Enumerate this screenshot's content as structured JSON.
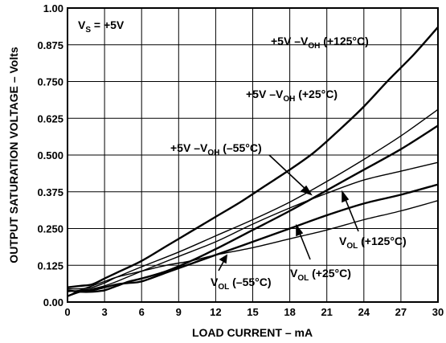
{
  "chart_data": {
    "type": "line",
    "xlabel": "LOAD CURRENT – mA",
    "ylabel": "OUTPUT SATURATION VOLTAGE – Volts",
    "xlim": [
      0,
      30
    ],
    "ylim": [
      0,
      1.0
    ],
    "x_ticks": [
      "0",
      "3",
      "6",
      "9",
      "12",
      "15",
      "18",
      "21",
      "24",
      "27",
      "30"
    ],
    "y_ticks": [
      "0.00",
      "0.125",
      "0.250",
      "0.375",
      "0.500",
      "0.625",
      "0.750",
      "0.875",
      "1.00"
    ],
    "grid": true,
    "annotations": {
      "vs": {
        "main": "V",
        "sub": "S",
        "post": " = +5V"
      },
      "voh125": {
        "pre": "+5V –V",
        "sub": "OH",
        "post": " (+125°C)"
      },
      "voh25": {
        "pre": "+5V –V",
        "sub": "OH",
        "post": " (+25°C)"
      },
      "vohm55": {
        "pre": "+5V –V",
        "sub": "OH",
        "post": " (–55°C)"
      },
      "vol125": {
        "pre": "V",
        "sub": "OL",
        "post": " (+125°C)"
      },
      "vol25": {
        "pre": "V",
        "sub": "OL",
        "post": " (+25°C)"
      },
      "volm55": {
        "pre": "V",
        "sub": "OL",
        "post": " (–55°C)"
      }
    },
    "series": [
      {
        "name": "+5V –VOH (+125°C)",
        "thick": true,
        "x": [
          0,
          1,
          2,
          3,
          4,
          6,
          8,
          10,
          12,
          14,
          16,
          18,
          20,
          22,
          24,
          26,
          28,
          30
        ],
        "y": [
          0.05,
          0.055,
          0.06,
          0.08,
          0.1,
          0.14,
          0.19,
          0.24,
          0.29,
          0.34,
          0.395,
          0.45,
          0.51,
          0.585,
          0.665,
          0.755,
          0.84,
          0.935
        ]
      },
      {
        "name": "+5V –VOH (+25°C)",
        "thick": false,
        "x": [
          0,
          1,
          2,
          3,
          4,
          6,
          9,
          12,
          15,
          18,
          21,
          24,
          27,
          30
        ],
        "y": [
          0.045,
          0.045,
          0.05,
          0.065,
          0.085,
          0.12,
          0.17,
          0.225,
          0.28,
          0.34,
          0.41,
          0.485,
          0.565,
          0.655
        ]
      },
      {
        "name": "+5V –VOH (–55°C)",
        "thick": false,
        "x": [
          0,
          1,
          2,
          3,
          4,
          6,
          9,
          12,
          15,
          18,
          21,
          24,
          27,
          30
        ],
        "y": [
          0.035,
          0.04,
          0.045,
          0.055,
          0.07,
          0.105,
          0.155,
          0.205,
          0.265,
          0.32,
          0.37,
          0.415,
          0.445,
          0.475
        ]
      },
      {
        "name": "VOL (+125°C)",
        "thick": true,
        "x": [
          0,
          1,
          2,
          3,
          4,
          5,
          6,
          8,
          10,
          12,
          15,
          18,
          21,
          24,
          27,
          30
        ],
        "y": [
          0.04,
          0.035,
          0.035,
          0.04,
          0.055,
          0.07,
          0.08,
          0.105,
          0.14,
          0.18,
          0.245,
          0.31,
          0.38,
          0.45,
          0.52,
          0.6
        ]
      },
      {
        "name": "VOL (+25°C)",
        "thick": true,
        "x": [
          0,
          1,
          2,
          3,
          4,
          5,
          6,
          8,
          10,
          12,
          15,
          18,
          21,
          24,
          27,
          30
        ],
        "y": [
          0.02,
          0.035,
          0.04,
          0.05,
          0.06,
          0.065,
          0.07,
          0.1,
          0.13,
          0.16,
          0.205,
          0.25,
          0.295,
          0.335,
          0.365,
          0.4
        ]
      },
      {
        "name": "VOL (–55°C)",
        "thick": false,
        "x": [
          0,
          1,
          2,
          3,
          4,
          6,
          8,
          10,
          12,
          15,
          18,
          21,
          24,
          27,
          30
        ],
        "y": [
          0.02,
          0.04,
          0.055,
          0.07,
          0.085,
          0.105,
          0.125,
          0.14,
          0.16,
          0.185,
          0.215,
          0.245,
          0.28,
          0.31,
          0.345
        ]
      }
    ]
  }
}
